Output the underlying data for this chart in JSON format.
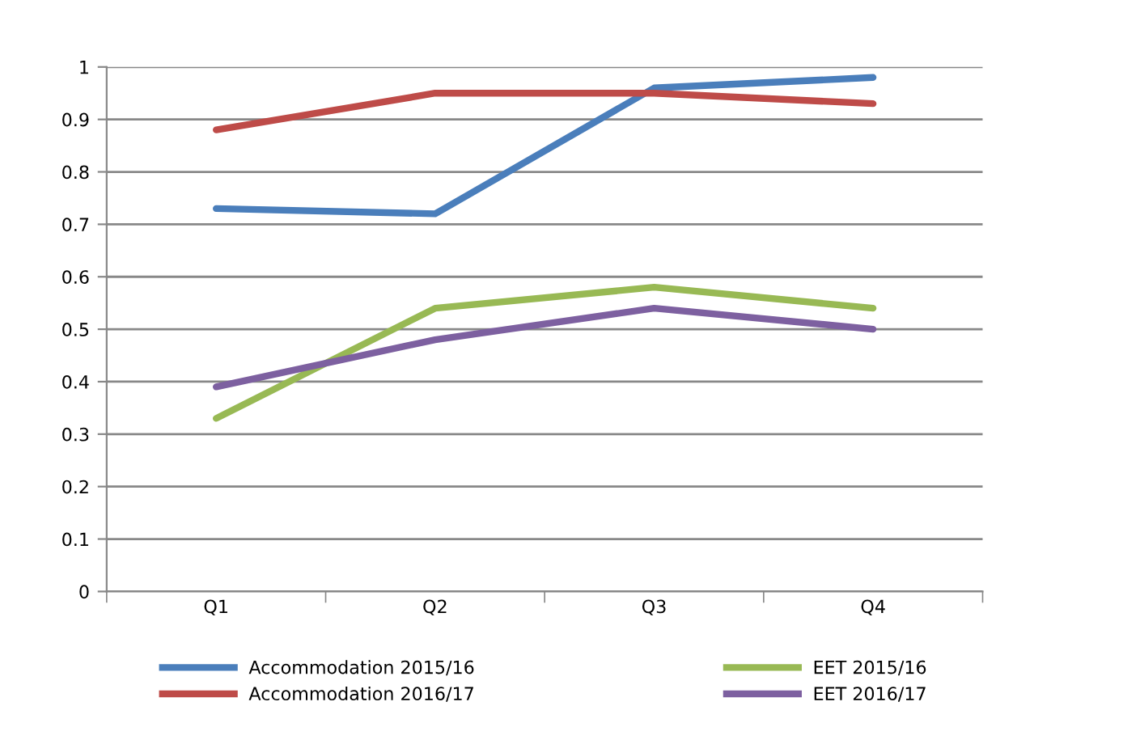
{
  "chart_data": {
    "type": "line",
    "categories": [
      "Q1",
      "Q2",
      "Q3",
      "Q4"
    ],
    "series": [
      {
        "name": "Accommodation 2015/16",
        "color": "#4a7ebb",
        "values": [
          0.73,
          0.72,
          0.96,
          0.98
        ]
      },
      {
        "name": "Accommodation 2016/17",
        "color": "#be4b48",
        "values": [
          0.88,
          0.95,
          0.95,
          0.93
        ]
      },
      {
        "name": "EET 2015/16",
        "color": "#98b954",
        "values": [
          0.33,
          0.54,
          0.58,
          0.54
        ]
      },
      {
        "name": "EET 2016/17",
        "color": "#7d60a0",
        "values": [
          0.39,
          0.48,
          0.54,
          0.5
        ]
      }
    ],
    "ylim": [
      0,
      1
    ],
    "yticks": [
      0,
      0.1,
      0.2,
      0.3,
      0.4,
      0.5,
      0.6,
      0.7,
      0.8,
      0.9,
      1
    ],
    "grid": "y",
    "legend": "bottom",
    "marker": "none",
    "line_style": "solid"
  }
}
